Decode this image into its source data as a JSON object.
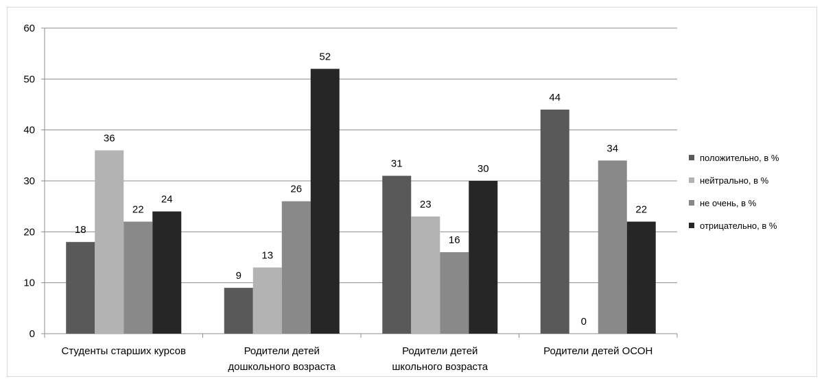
{
  "chart_data": {
    "type": "bar",
    "categories": [
      [
        "Студенты старших курсов"
      ],
      [
        "Родители детей",
        "дошкольного возраста"
      ],
      [
        "Родители детей",
        "школьного возраста"
      ],
      [
        "Родители детей ОСОН"
      ]
    ],
    "series": [
      {
        "name": "положительно,  в %",
        "color": "#595959",
        "values": [
          18,
          9,
          31,
          44
        ]
      },
      {
        "name": "нейтрально,  в %",
        "color": "#b3b3b3",
        "values": [
          36,
          13,
          23,
          0
        ]
      },
      {
        "name": "не очень, в %",
        "color": "#898989",
        "values": [
          22,
          26,
          16,
          34
        ]
      },
      {
        "name": "отрицательно,  в %",
        "color": "#262626",
        "values": [
          24,
          52,
          30,
          22
        ]
      }
    ],
    "ylim": [
      0,
      60
    ],
    "yticks": [
      0,
      10,
      20,
      30,
      40,
      50,
      60
    ],
    "grid": true,
    "legend_position": "right",
    "title": "",
    "xlabel": "",
    "ylabel": ""
  }
}
